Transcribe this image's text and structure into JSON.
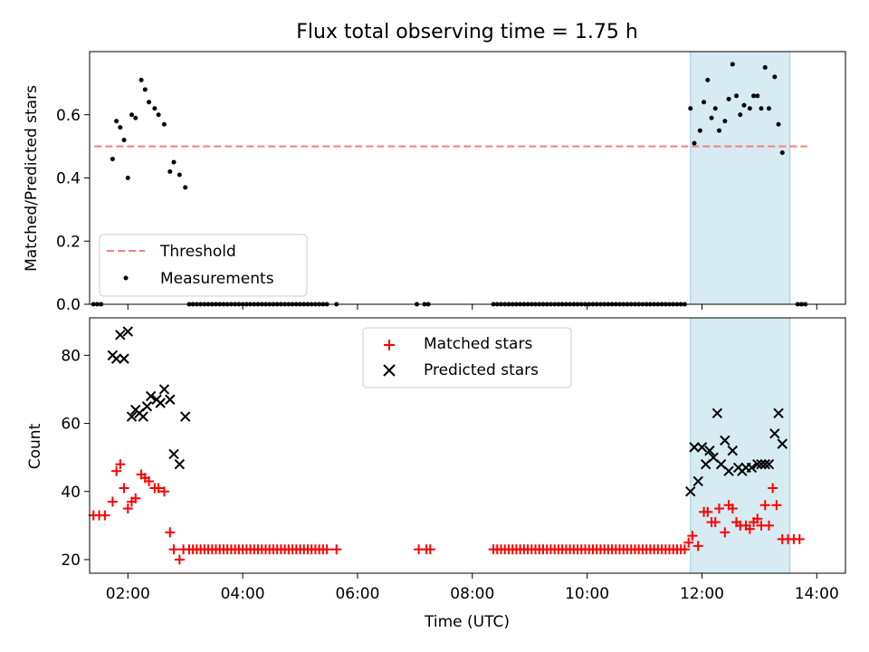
{
  "chart_data": [
    {
      "type": "scatter",
      "title": "Flux total observing time = 1.75 h",
      "ylabel": "Matched/Predicted stars",
      "xlabel": "",
      "xlim": [
        "01:20",
        "14:30"
      ],
      "ylim": [
        0,
        0.8
      ],
      "yticks": [
        "0.0",
        "0.2",
        "0.4",
        "0.6"
      ],
      "shaded_interval": [
        "11:48",
        "13:32"
      ],
      "legend_position": "lower-left",
      "series": [
        {
          "name": "Threshold",
          "kind": "dashed-line",
          "color": "#f87c7c",
          "x_range": [
            "01:25",
            "13:50"
          ],
          "y": 0.5
        },
        {
          "name": "Measurements",
          "kind": "points",
          "color": "#000000",
          "points": [
            [
              "01:44",
              0.46
            ],
            [
              "01:48",
              0.58
            ],
            [
              "01:52",
              0.56
            ],
            [
              "01:56",
              0.52
            ],
            [
              "02:00",
              0.4
            ],
            [
              "02:04",
              0.6
            ],
            [
              "02:08",
              0.59
            ],
            [
              "02:14",
              0.71
            ],
            [
              "02:18",
              0.68
            ],
            [
              "02:22",
              0.64
            ],
            [
              "02:28",
              0.62
            ],
            [
              "02:32",
              0.6
            ],
            [
              "02:38",
              0.57
            ],
            [
              "02:44",
              0.42
            ],
            [
              "02:48",
              0.45
            ],
            [
              "02:54",
              0.41
            ],
            [
              "03:00",
              0.37
            ],
            [
              "11:48",
              0.62
            ],
            [
              "11:52",
              0.51
            ],
            [
              "11:58",
              0.55
            ],
            [
              "12:02",
              0.64
            ],
            [
              "12:06",
              0.71
            ],
            [
              "12:10",
              0.59
            ],
            [
              "12:14",
              0.62
            ],
            [
              "12:18",
              0.55
            ],
            [
              "12:24",
              0.58
            ],
            [
              "12:28",
              0.65
            ],
            [
              "12:32",
              0.76
            ],
            [
              "12:36",
              0.66
            ],
            [
              "12:40",
              0.6
            ],
            [
              "12:44",
              0.63
            ],
            [
              "12:50",
              0.62
            ],
            [
              "12:54",
              0.66
            ],
            [
              "12:58",
              0.66
            ],
            [
              "13:02",
              0.62
            ],
            [
              "13:06",
              0.75
            ],
            [
              "13:10",
              0.62
            ],
            [
              "13:16",
              0.72
            ],
            [
              "13:20",
              0.57
            ],
            [
              "13:24",
              0.48
            ]
          ],
          "zero_points": [
            "01:24",
            "01:28",
            "01:32",
            "03:04",
            "03:08",
            "03:12",
            "03:16",
            "03:20",
            "03:24",
            "03:28",
            "03:32",
            "03:36",
            "03:40",
            "03:44",
            "03:48",
            "03:52",
            "03:56",
            "04:00",
            "04:04",
            "04:08",
            "04:12",
            "04:16",
            "04:20",
            "04:24",
            "04:28",
            "04:32",
            "04:36",
            "04:40",
            "04:44",
            "04:48",
            "04:52",
            "04:56",
            "05:00",
            "05:04",
            "05:08",
            "05:12",
            "05:16",
            "05:20",
            "05:24",
            "05:28",
            "05:38",
            "07:02",
            "07:10",
            "07:14",
            "08:22",
            "08:26",
            "08:30",
            "08:34",
            "08:38",
            "08:42",
            "08:46",
            "08:50",
            "08:54",
            "08:58",
            "09:02",
            "09:06",
            "09:10",
            "09:14",
            "09:18",
            "09:22",
            "09:26",
            "09:30",
            "09:34",
            "09:38",
            "09:42",
            "09:46",
            "09:50",
            "09:54",
            "09:58",
            "10:02",
            "10:06",
            "10:10",
            "10:14",
            "10:18",
            "10:22",
            "10:26",
            "10:30",
            "10:34",
            "10:38",
            "10:42",
            "10:46",
            "10:50",
            "10:54",
            "10:58",
            "11:02",
            "11:06",
            "11:10",
            "11:14",
            "11:18",
            "11:22",
            "11:26",
            "11:30",
            "11:34",
            "11:38",
            "11:42",
            "13:40",
            "13:44",
            "13:48"
          ]
        }
      ]
    },
    {
      "type": "scatter",
      "title": "",
      "ylabel": "Count",
      "xlabel": "Time (UTC)",
      "xlim": [
        "01:20",
        "14:30"
      ],
      "ylim": [
        16,
        91
      ],
      "yticks": [
        "20",
        "40",
        "60",
        "80"
      ],
      "xticks": [
        "02:00",
        "04:00",
        "06:00",
        "08:00",
        "10:00",
        "12:00",
        "14:00"
      ],
      "shaded_interval": [
        "11:48",
        "13:32"
      ],
      "legend_position": "upper-center",
      "series": [
        {
          "name": "Matched stars",
          "marker": "plus",
          "color": "#ff0000",
          "points": [
            [
              "01:24",
              33
            ],
            [
              "01:30",
              33
            ],
            [
              "01:36",
              33
            ],
            [
              "01:44",
              37
            ],
            [
              "01:48",
              46
            ],
            [
              "01:52",
              48
            ],
            [
              "01:56",
              41
            ],
            [
              "02:00",
              35
            ],
            [
              "02:04",
              37
            ],
            [
              "02:08",
              38
            ],
            [
              "02:14",
              45
            ],
            [
              "02:18",
              44
            ],
            [
              "02:22",
              43
            ],
            [
              "02:28",
              41
            ],
            [
              "02:32",
              41
            ],
            [
              "02:38",
              40
            ],
            [
              "02:44",
              28
            ],
            [
              "02:48",
              23
            ],
            [
              "02:54",
              20
            ],
            [
              "11:46",
              25
            ],
            [
              "11:50",
              27
            ],
            [
              "11:56",
              24
            ],
            [
              "12:02",
              34
            ],
            [
              "12:06",
              34
            ],
            [
              "12:10",
              31
            ],
            [
              "12:14",
              31
            ],
            [
              "12:18",
              35
            ],
            [
              "12:24",
              28
            ],
            [
              "12:28",
              36
            ],
            [
              "12:32",
              35
            ],
            [
              "12:36",
              31
            ],
            [
              "12:40",
              30
            ],
            [
              "12:46",
              30
            ],
            [
              "12:50",
              29
            ],
            [
              "12:54",
              31
            ],
            [
              "12:58",
              32
            ],
            [
              "13:02",
              30
            ],
            [
              "13:06",
              36
            ],
            [
              "13:10",
              30
            ],
            [
              "13:14",
              41
            ],
            [
              "13:18",
              36
            ],
            [
              "13:24",
              26
            ],
            [
              "13:30",
              26
            ],
            [
              "13:36",
              26
            ],
            [
              "13:42",
              26
            ]
          ],
          "baseline_value": 23,
          "baseline_times": [
            "02:58",
            "03:04",
            "03:08",
            "03:12",
            "03:16",
            "03:20",
            "03:24",
            "03:28",
            "03:32",
            "03:36",
            "03:40",
            "03:44",
            "03:48",
            "03:52",
            "03:56",
            "04:00",
            "04:04",
            "04:08",
            "04:12",
            "04:16",
            "04:20",
            "04:24",
            "04:28",
            "04:32",
            "04:36",
            "04:40",
            "04:44",
            "04:48",
            "04:52",
            "04:56",
            "05:00",
            "05:04",
            "05:08",
            "05:12",
            "05:16",
            "05:20",
            "05:24",
            "05:28",
            "05:38",
            "07:04",
            "07:12",
            "07:16",
            "08:22",
            "08:26",
            "08:30",
            "08:34",
            "08:38",
            "08:42",
            "08:46",
            "08:50",
            "08:54",
            "08:58",
            "09:02",
            "09:06",
            "09:10",
            "09:14",
            "09:18",
            "09:22",
            "09:26",
            "09:30",
            "09:34",
            "09:38",
            "09:42",
            "09:46",
            "09:50",
            "09:54",
            "09:58",
            "10:02",
            "10:06",
            "10:10",
            "10:14",
            "10:18",
            "10:22",
            "10:26",
            "10:30",
            "10:34",
            "10:38",
            "10:42",
            "10:46",
            "10:50",
            "10:54",
            "10:58",
            "11:02",
            "11:06",
            "11:10",
            "11:14",
            "11:18",
            "11:22",
            "11:26",
            "11:30",
            "11:34",
            "11:38",
            "11:42"
          ]
        },
        {
          "name": "Predicted stars",
          "marker": "x",
          "color": "#000000",
          "points": [
            [
              "01:44",
              80
            ],
            [
              "01:48",
              79
            ],
            [
              "01:52",
              86
            ],
            [
              "01:56",
              79
            ],
            [
              "02:00",
              87
            ],
            [
              "02:04",
              62
            ],
            [
              "02:08",
              64
            ],
            [
              "02:12",
              63
            ],
            [
              "02:16",
              62
            ],
            [
              "02:20",
              65
            ],
            [
              "02:24",
              68
            ],
            [
              "02:30",
              67
            ],
            [
              "02:34",
              66
            ],
            [
              "02:38",
              70
            ],
            [
              "02:44",
              67
            ],
            [
              "02:48",
              51
            ],
            [
              "02:54",
              48
            ],
            [
              "03:00",
              62
            ],
            [
              "11:48",
              40
            ],
            [
              "11:52",
              53
            ],
            [
              "11:56",
              43
            ],
            [
              "12:00",
              53
            ],
            [
              "12:04",
              48
            ],
            [
              "12:08",
              52
            ],
            [
              "12:12",
              50
            ],
            [
              "12:16",
              63
            ],
            [
              "12:20",
              48
            ],
            [
              "12:24",
              55
            ],
            [
              "12:28",
              46
            ],
            [
              "12:32",
              52
            ],
            [
              "12:38",
              47
            ],
            [
              "12:42",
              46
            ],
            [
              "12:46",
              47
            ],
            [
              "12:52",
              47
            ],
            [
              "12:58",
              48
            ],
            [
              "13:02",
              48
            ],
            [
              "13:06",
              48
            ],
            [
              "13:10",
              48
            ],
            [
              "13:16",
              57
            ],
            [
              "13:20",
              63
            ],
            [
              "13:24",
              54
            ]
          ]
        }
      ]
    }
  ]
}
